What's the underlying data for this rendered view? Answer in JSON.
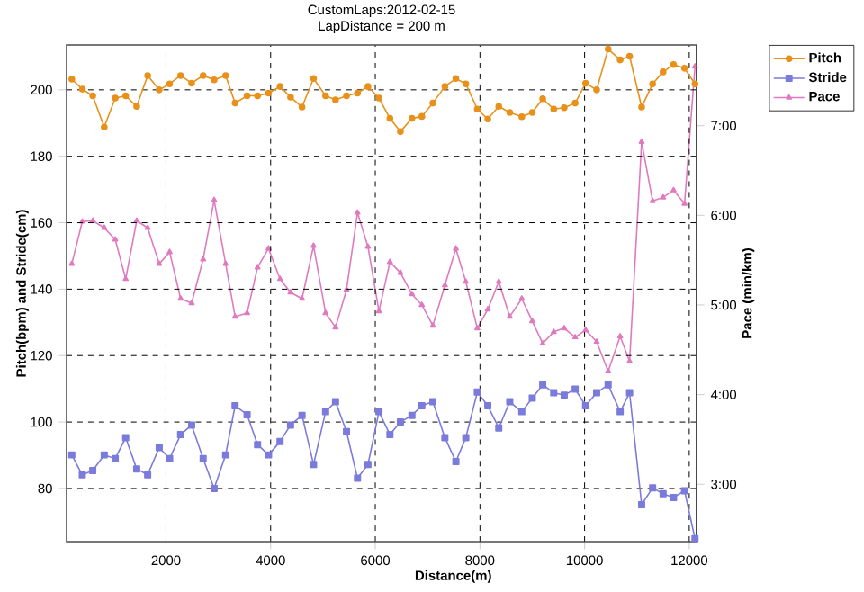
{
  "chart_data": {
    "type": "line",
    "title": "CustomLaps:2012-02-15",
    "subtitle": "LapDistance = 200 m",
    "xlabel": "Distance(m)",
    "ylabel": "Pitch(bpm) and Stride(cm)",
    "y2label": "Pace (min/km)",
    "x": [
      200,
      400,
      600,
      820,
      1030,
      1230,
      1440,
      1650,
      1870,
      2070,
      2280,
      2490,
      2710,
      2920,
      3140,
      3320,
      3550,
      3750,
      3960,
      4180,
      4380,
      4600,
      4820,
      5050,
      5240,
      5450,
      5660,
      5860,
      6070,
      6280,
      6480,
      6700,
      6890,
      7100,
      7330,
      7540,
      7730,
      7950,
      8150,
      8360,
      8570,
      8800,
      9000,
      9200,
      9410,
      9610,
      9820,
      10020,
      10230,
      10450,
      10680,
      10860,
      11090,
      11300,
      11500,
      11700,
      11910,
      12110
    ],
    "series": [
      {
        "name": "Pitch",
        "color": "#e8911a",
        "marker": "circle",
        "values": [
          203.2,
          200.2,
          198.2,
          188.8,
          197.5,
          198.2,
          195,
          204.3,
          200,
          201.8,
          204.3,
          202,
          204.3,
          203,
          204.3,
          196,
          198.2,
          198.2,
          199,
          201,
          197.8,
          194.8,
          203.4,
          198.2,
          197,
          198.2,
          199,
          201,
          197.5,
          191.4,
          187.4,
          191.4,
          192,
          196,
          201,
          203.4,
          201.8,
          194.2,
          191.2,
          195,
          193.2,
          191.9,
          193.2,
          197.3,
          194.2,
          194.6,
          196,
          202,
          200,
          212.3,
          209,
          210.1,
          194.8,
          201.8,
          205.4,
          207.6,
          206.5,
          201.8
        ]
      },
      {
        "name": "Stride",
        "color": "#7b7bdc",
        "marker": "square",
        "values": [
          90.1,
          84.1,
          85.4,
          90.1,
          89,
          95.3,
          85.9,
          84.1,
          92.3,
          89,
          96.2,
          99.1,
          89,
          80,
          90.1,
          104.9,
          102.2,
          93.2,
          90.1,
          94.1,
          99.1,
          102,
          87.2,
          103.1,
          106.1,
          97.1,
          83.1,
          87.2,
          103.1,
          96.2,
          100,
          102,
          104.9,
          106.1,
          95.3,
          88.1,
          95.3,
          109,
          104.9,
          98.2,
          106.1,
          103.1,
          107.2,
          111.2,
          108.8,
          108.1,
          109.9,
          104.9,
          108.8,
          111.2,
          103.1,
          108.8,
          75.1,
          80.2,
          78.4,
          77.3,
          79.3,
          64.9
        ]
      },
      {
        "name": "Pace",
        "color": "#e07ac0",
        "marker": "triangle",
        "axis": "y2",
        "values": [
          5.46,
          5.93,
          5.94,
          5.86,
          5.73,
          5.29,
          5.94,
          5.86,
          5.46,
          5.59,
          5.07,
          5.02,
          5.51,
          6.17,
          5.46,
          4.87,
          4.91,
          5.42,
          5.63,
          5.29,
          5.14,
          5.07,
          5.66,
          4.91,
          4.75,
          5.17,
          6.03,
          5.65,
          4.93,
          5.48,
          5.36,
          5.12,
          5.0,
          4.77,
          5.22,
          5.63,
          5.26,
          4.74,
          4.95,
          5.26,
          4.87,
          5.07,
          4.82,
          4.57,
          4.7,
          4.74,
          4.64,
          4.72,
          4.59,
          4.26,
          4.65,
          4.37,
          6.82,
          6.16,
          6.2,
          6.28,
          6.13,
          7.66
        ]
      }
    ],
    "xlim": [
      100,
      12140
    ],
    "xticks": [
      2000,
      4000,
      6000,
      8000,
      10000,
      12000
    ],
    "ylim": [
      64,
      213.5
    ],
    "yticks": [
      80,
      100,
      120,
      140,
      160,
      180,
      200
    ],
    "y2lim": [
      2.36,
      7.9
    ],
    "y2ticks": [
      {
        "value": 3,
        "label": "3:00"
      },
      {
        "value": 4,
        "label": "4:00"
      },
      {
        "value": 5,
        "label": "5:00"
      },
      {
        "value": 6,
        "label": "6:00"
      },
      {
        "value": 7,
        "label": "7:00"
      }
    ],
    "grid": true,
    "legend": "right",
    "line_style": "solid"
  }
}
